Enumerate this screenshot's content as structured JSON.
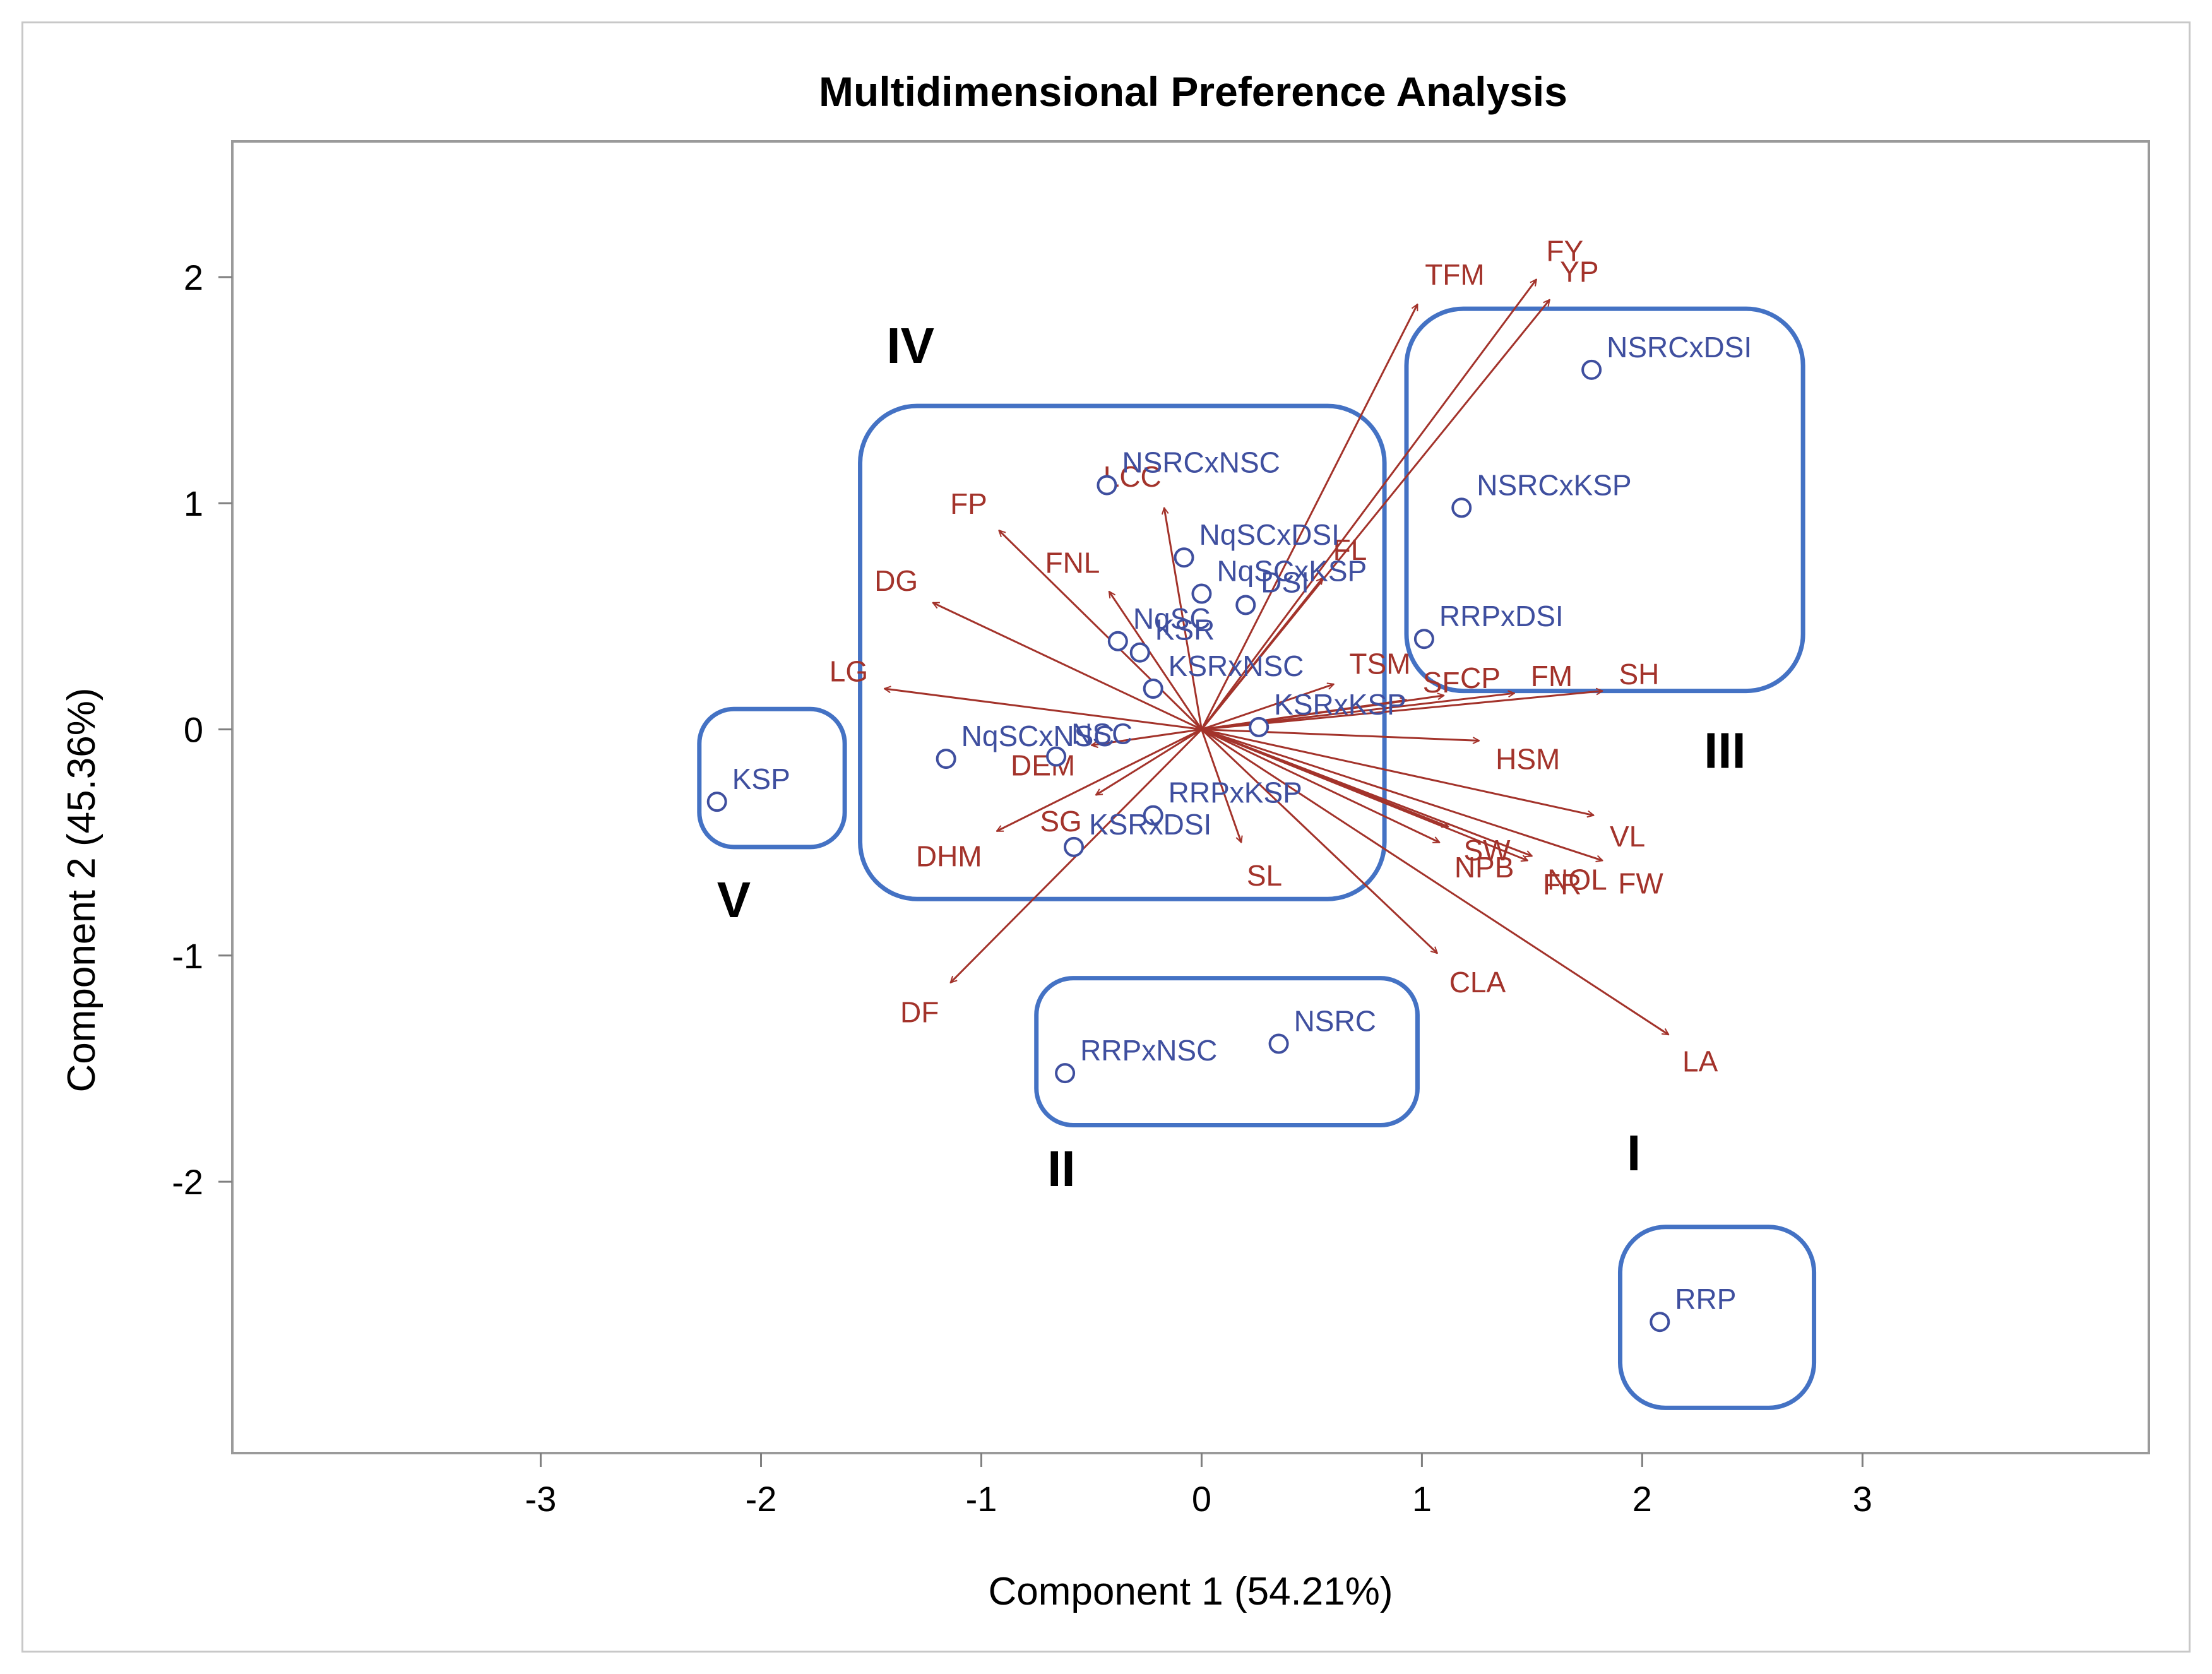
{
  "chart_data": {
    "type": "scatter",
    "title": "Multidimensional Preference Analysis",
    "xlabel": "Component 1 (54.21%)",
    "ylabel": "Component 2 (45.36%)",
    "xlim": [
      -4.4,
      4.3
    ],
    "ylim": [
      -3.2,
      2.6
    ],
    "xticks": [
      -3,
      -2,
      -1,
      0,
      1,
      2,
      3
    ],
    "yticks": [
      2,
      1,
      0,
      -1,
      -2
    ],
    "grid": false,
    "colors": {
      "points": "#3f4f9f",
      "vectors": "#a3332b",
      "groups": "#4472c4",
      "frame": "#9a9a9a",
      "text": "#000000"
    },
    "points": [
      {
        "label": "NSRCxDSI",
        "x": 1.77,
        "y": 1.59
      },
      {
        "label": "NSRCxKSP",
        "x": 1.18,
        "y": 0.98
      },
      {
        "label": "RRPxDSI",
        "x": 1.01,
        "y": 0.4
      },
      {
        "label": "NSRCxNSC",
        "x": -0.43,
        "y": 1.08
      },
      {
        "label": "NqSCxDSI",
        "x": -0.08,
        "y": 0.76
      },
      {
        "label": "NqSCxKSP",
        "x": 0.0,
        "y": 0.6
      },
      {
        "label": "KSR",
        "x": -0.28,
        "y": 0.34
      },
      {
        "label": "DSI",
        "x": 0.2,
        "y": 0.55
      },
      {
        "label": "NqSC",
        "x": -0.38,
        "y": 0.39
      },
      {
        "label": "KSRxNSC",
        "x": -0.22,
        "y": 0.18
      },
      {
        "label": "NqSCxNSC",
        "x": -1.16,
        "y": -0.13
      },
      {
        "label": "NSC",
        "x": -0.66,
        "y": -0.12
      },
      {
        "label": "KSRxKSP",
        "x": 0.26,
        "y": 0.01
      },
      {
        "label": "RRPxKSP",
        "x": -0.22,
        "y": -0.38
      },
      {
        "label": "KSRxDSI",
        "x": -0.58,
        "y": -0.52
      },
      {
        "label": "KSP",
        "x": -2.2,
        "y": -0.32
      },
      {
        "label": "NSRC",
        "x": 0.35,
        "y": -1.39
      },
      {
        "label": "RRPxNSC",
        "x": -0.62,
        "y": -1.52
      },
      {
        "label": "RRP",
        "x": 2.08,
        "y": -2.62
      }
    ],
    "vectors": [
      {
        "label": "TFM",
        "x": 0.98,
        "y": 1.88
      },
      {
        "label": "FY",
        "x": 1.52,
        "y": 1.99
      },
      {
        "label": "YP",
        "x": 1.58,
        "y": 1.9
      },
      {
        "label": "LCC",
        "x": -0.17,
        "y": 0.98
      },
      {
        "label": "FP",
        "x": -0.92,
        "y": 0.88
      },
      {
        "label": "FNL",
        "x": -0.42,
        "y": 0.61
      },
      {
        "label": "DG",
        "x": -1.22,
        "y": 0.56
      },
      {
        "label": "FL",
        "x": 0.55,
        "y": 0.67
      },
      {
        "label": "TSM",
        "x": 0.6,
        "y": 0.2
      },
      {
        "label": "LG",
        "x": -1.44,
        "y": 0.18
      },
      {
        "label": "SF",
        "x": 0.93,
        "y": 0.13
      },
      {
        "label": "CP",
        "x": 1.1,
        "y": 0.15
      },
      {
        "label": "FM",
        "x": 1.42,
        "y": 0.16
      },
      {
        "label": "SH",
        "x": 1.82,
        "y": 0.17
      },
      {
        "label": "DEM",
        "x": -0.5,
        "y": -0.07
      },
      {
        "label": "HSM",
        "x": 1.26,
        "y": -0.05
      },
      {
        "label": "SG",
        "x": -0.48,
        "y": -0.29
      },
      {
        "label": "SW",
        "x": 1.12,
        "y": -0.43
      },
      {
        "label": "VL",
        "x": 1.78,
        "y": -0.38
      },
      {
        "label": "DHM",
        "x": -0.93,
        "y": -0.45
      },
      {
        "label": "NPB",
        "x": 1.08,
        "y": -0.5
      },
      {
        "label": "NOL",
        "x": 1.5,
        "y": -0.56
      },
      {
        "label": "FW",
        "x": 1.82,
        "y": -0.58
      },
      {
        "label": "FR",
        "x": 1.48,
        "y": -0.58
      },
      {
        "label": "SL",
        "x": 0.18,
        "y": -0.5
      },
      {
        "label": "CLA",
        "x": 1.07,
        "y": -0.99
      },
      {
        "label": "DF",
        "x": -1.14,
        "y": -1.12
      },
      {
        "label": "LA",
        "x": 2.12,
        "y": -1.35
      }
    ],
    "groups": [
      {
        "label": "I",
        "x_range": [
          1.9,
          2.78
        ],
        "y_range": [
          -3.0,
          -2.2
        ],
        "label_x": 1.93,
        "label_y": -1.95
      },
      {
        "label": "II",
        "x_range": [
          -0.75,
          0.98
        ],
        "y_range": [
          -1.75,
          -1.1
        ],
        "label_x": -0.7,
        "label_y": -2.02
      },
      {
        "label": "III",
        "x_range": [
          0.93,
          2.73
        ],
        "y_range": [
          0.17,
          1.86
        ],
        "label_x": 2.28,
        "label_y": -0.17
      },
      {
        "label": "IV",
        "x_range": [
          -1.55,
          0.83
        ],
        "y_range": [
          -0.75,
          1.43
        ],
        "label_x": -1.43,
        "label_y": 1.62
      },
      {
        "label": "V",
        "x_range": [
          -2.28,
          -1.62
        ],
        "y_range": [
          -0.52,
          0.09
        ],
        "label_x": -2.2,
        "label_y": -0.83
      }
    ]
  }
}
